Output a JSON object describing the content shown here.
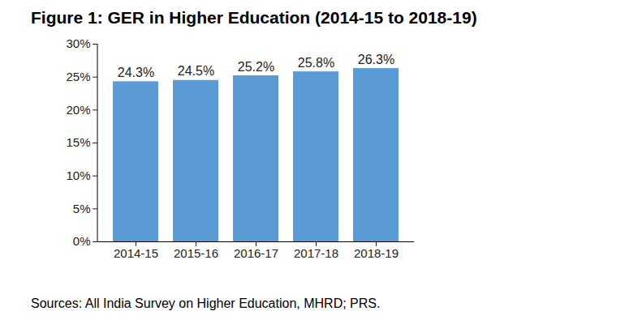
{
  "chart_data": {
    "type": "bar",
    "title": "Figure 1: GER in Higher Education (2014-15 to 2018-19)",
    "source": "Sources: All India Survey on Higher Education, MHRD; PRS.",
    "categories": [
      "2014-15",
      "2015-16",
      "2016-17",
      "2017-18",
      "2018-19"
    ],
    "values": [
      24.3,
      24.5,
      25.2,
      25.8,
      26.3
    ],
    "value_labels": [
      "24.3%",
      "24.5%",
      "25.2%",
      "25.8%",
      "26.3%"
    ],
    "color": "#5b9bd5",
    "ylim": [
      0,
      30
    ],
    "yticks": [
      {
        "value": 0,
        "label": "0%"
      },
      {
        "value": 5,
        "label": "5%"
      },
      {
        "value": 10,
        "label": "10%"
      },
      {
        "value": 15,
        "label": "15%"
      },
      {
        "value": 20,
        "label": "20%"
      },
      {
        "value": 25,
        "label": "25%"
      },
      {
        "value": 30,
        "label": "30%"
      }
    ],
    "data_labels": true,
    "grid": false
  }
}
